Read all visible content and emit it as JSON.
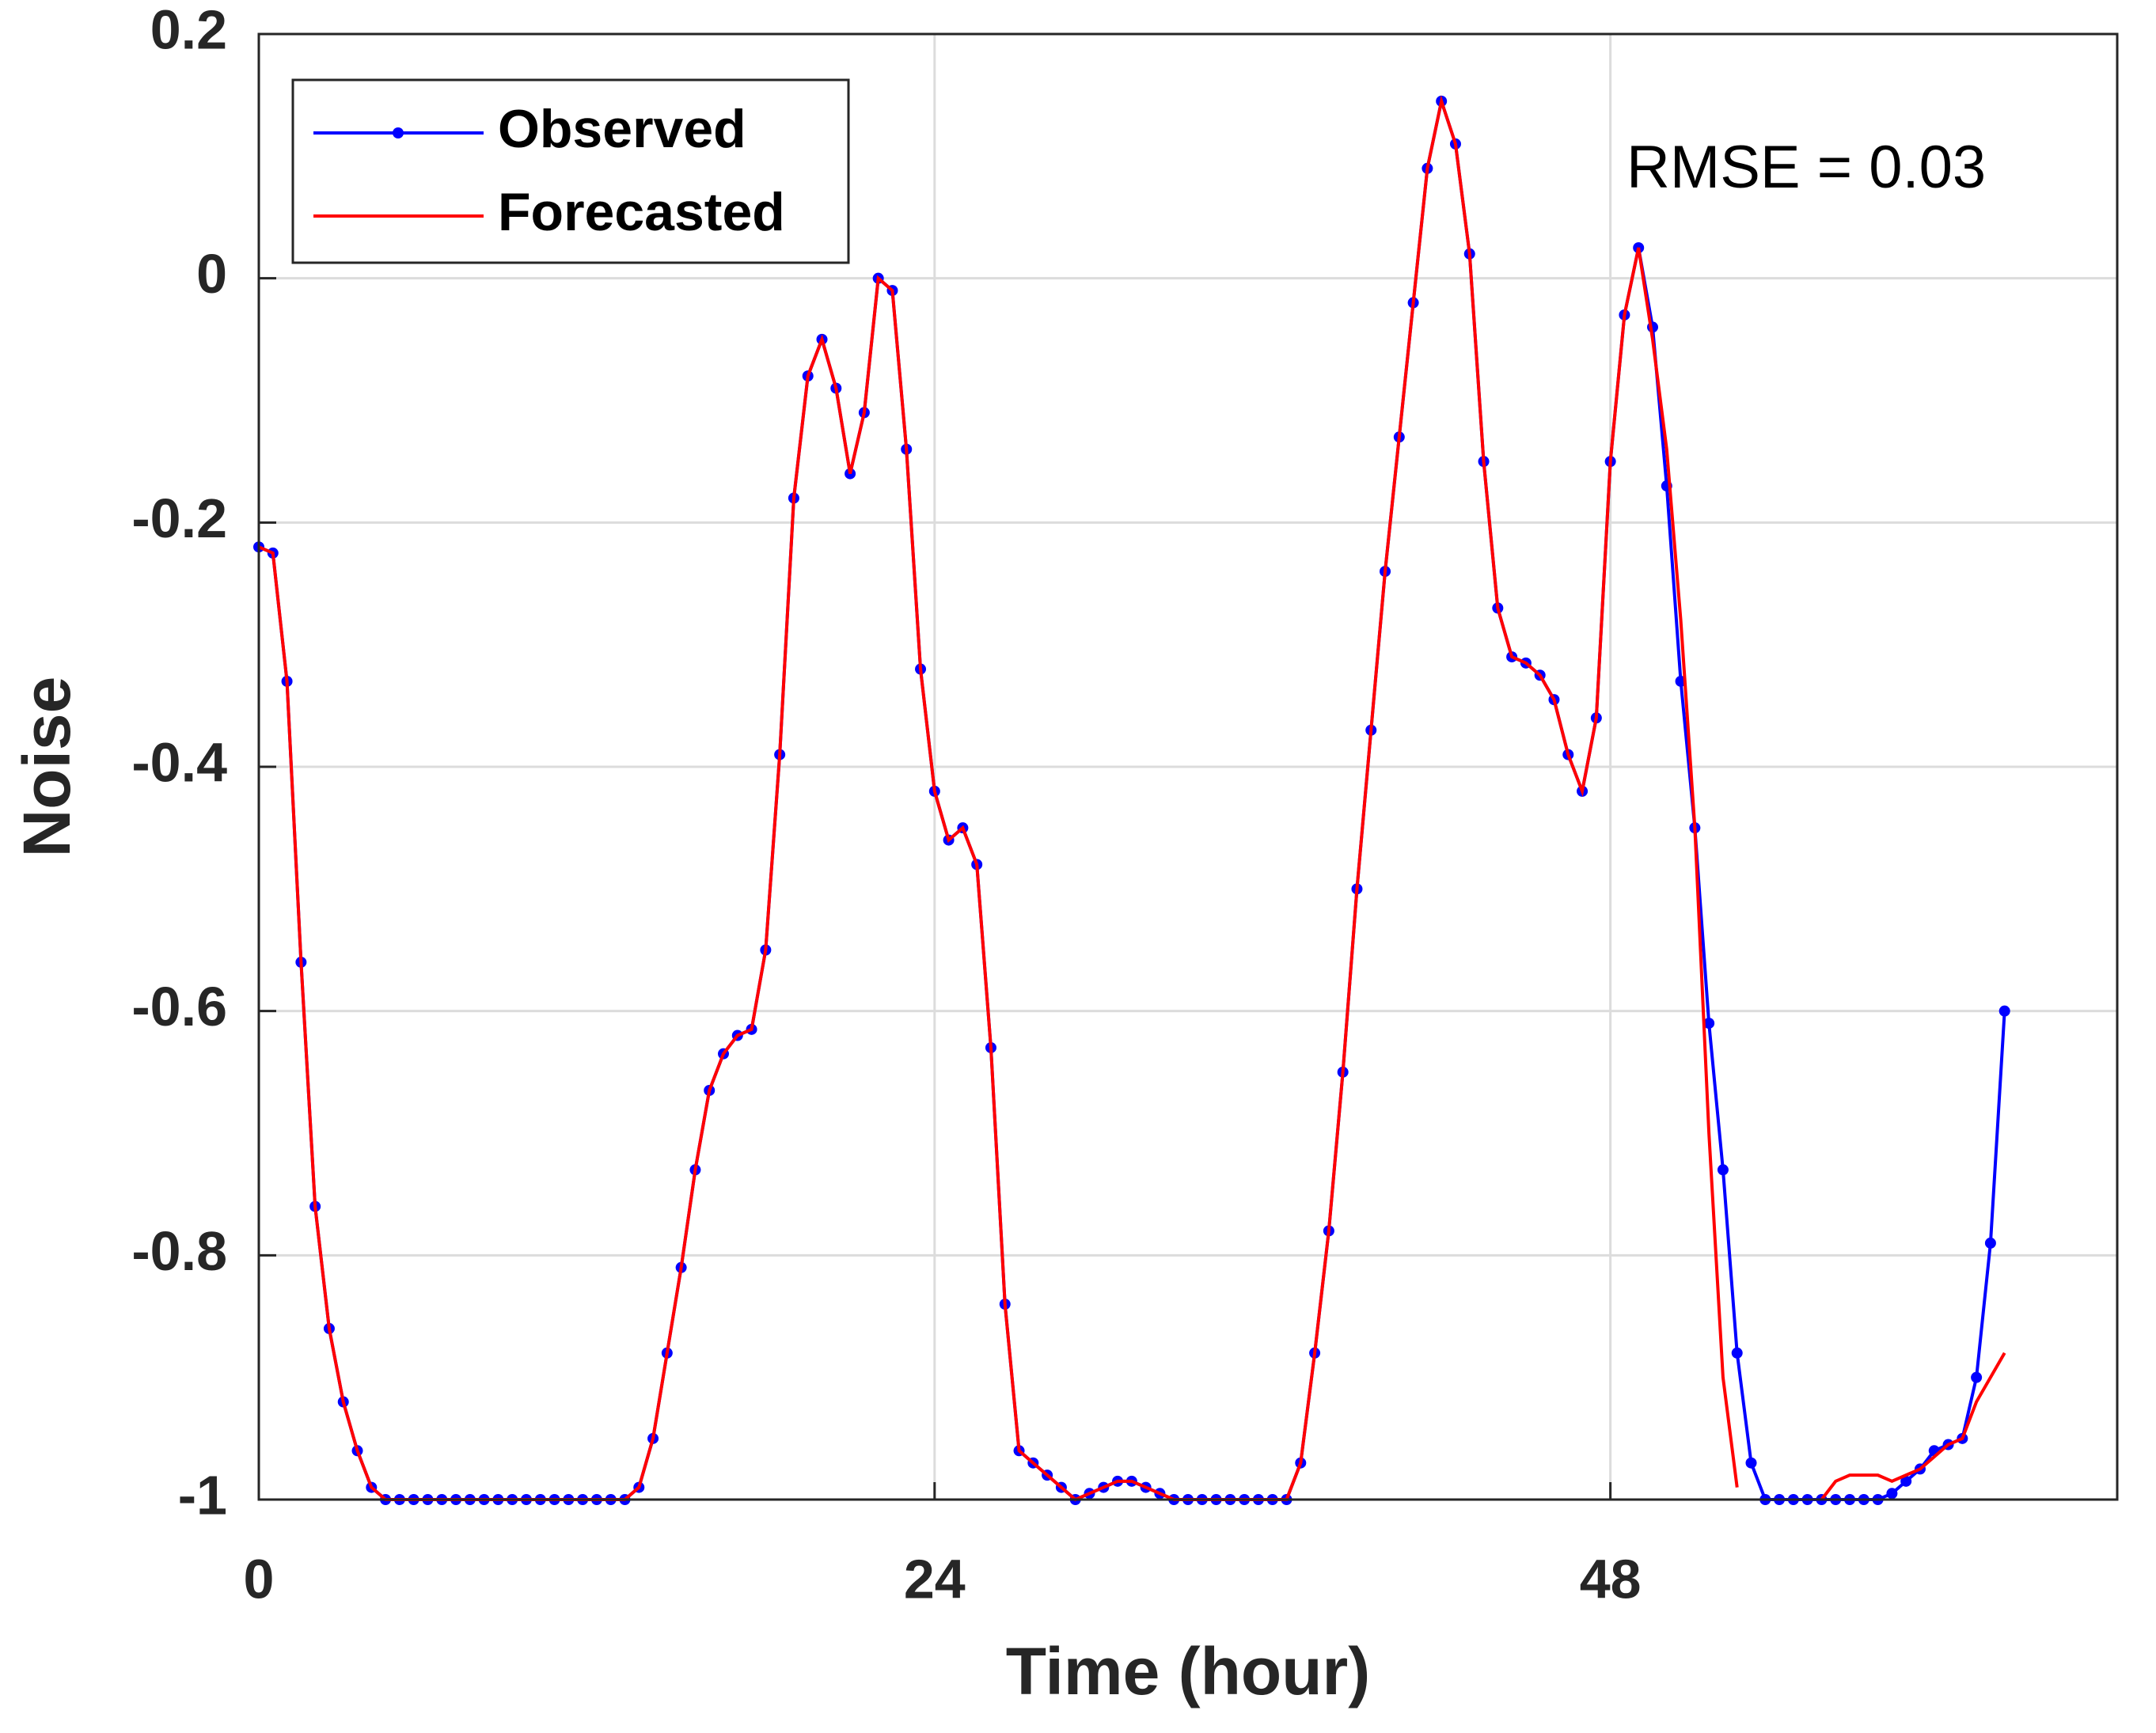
{
  "chart_data": {
    "type": "line",
    "xlabel": "Time (hour)",
    "ylabel": "Noise",
    "annotation": "RMSE = 0.03",
    "xlim": [
      0,
      66
    ],
    "ylim": [
      -1,
      0.2
    ],
    "xticks": [
      0,
      24,
      48
    ],
    "yticks": [
      -1,
      -0.8,
      -0.6,
      -0.4,
      -0.2,
      0,
      0.2
    ],
    "grid": true,
    "legend": "northwest",
    "x": [
      0,
      0.5,
      1,
      1.5,
      2,
      2.5,
      3,
      3.5,
      4,
      4.5,
      5,
      5.5,
      6,
      6.5,
      7,
      7.5,
      8,
      8.5,
      9,
      9.5,
      10,
      10.5,
      11,
      11.5,
      12,
      12.5,
      13,
      13.5,
      14,
      14.5,
      15,
      15.5,
      16,
      16.5,
      17,
      17.5,
      18,
      18.5,
      19,
      19.5,
      20,
      20.5,
      21,
      21.5,
      22,
      22.5,
      23,
      23.5,
      24,
      24.5,
      25,
      25.5,
      26,
      26.5,
      27,
      27.5,
      28,
      28.5,
      29,
      29.5,
      30,
      30.5,
      31,
      31.5,
      32,
      32.5,
      33,
      33.5,
      34,
      34.5,
      35,
      35.5,
      36,
      36.5,
      37,
      37.5,
      38,
      38.5,
      39,
      39.5,
      40,
      40.5,
      41,
      41.5,
      42,
      42.5,
      43,
      43.5,
      44,
      44.5,
      45,
      45.5,
      46,
      46.5,
      47,
      47.5,
      48,
      48.5,
      49,
      49.5,
      50,
      50.5,
      51,
      51.5,
      52,
      52.5,
      53,
      53.5,
      54,
      54.5,
      55,
      55.5,
      56,
      56.5,
      57,
      57.5,
      58,
      58.5,
      59,
      59.5,
      60,
      60.5,
      61,
      61.5,
      62
    ],
    "series": [
      {
        "name": "Observed",
        "color": "#0000ff",
        "marker": true,
        "values": [
          -0.22,
          -0.225,
          -0.33,
          -0.56,
          -0.76,
          -0.86,
          -0.92,
          -0.96,
          -0.99,
          -1,
          -1,
          -1,
          -1,
          -1,
          -1,
          -1,
          -1,
          -1,
          -1,
          -1,
          -1,
          -1,
          -1,
          -1,
          -1,
          -1,
          -1,
          -0.99,
          -0.95,
          -0.88,
          -0.81,
          -0.73,
          -0.665,
          -0.635,
          -0.62,
          -0.615,
          -0.55,
          -0.39,
          -0.18,
          -0.08,
          -0.05,
          -0.09,
          -0.16,
          -0.11,
          0,
          -0.01,
          -0.14,
          -0.32,
          -0.42,
          -0.46,
          -0.45,
          -0.48,
          -0.63,
          -0.84,
          -0.96,
          -0.97,
          -0.98,
          -0.99,
          -1,
          -0.995,
          -0.99,
          -0.985,
          -0.985,
          -0.99,
          -0.995,
          -1,
          -1,
          -1,
          -1,
          -1,
          -1,
          -1,
          -1,
          -1,
          -0.97,
          -0.88,
          -0.78,
          -0.65,
          -0.5,
          -0.37,
          -0.24,
          -0.13,
          -0.02,
          0.09,
          0.145,
          0.11,
          0.02,
          -0.15,
          -0.27,
          -0.31,
          -0.315,
          -0.325,
          -0.345,
          -0.39,
          -0.42,
          -0.36,
          -0.15,
          -0.03,
          0.025,
          -0.04,
          -0.17,
          -0.33,
          -0.45,
          -0.61,
          -0.73,
          -0.88,
          -0.97,
          -1,
          -1,
          -1,
          -1,
          -1,
          -1,
          -1,
          -1,
          -1,
          -0.995,
          -0.985,
          -0.975,
          -0.96,
          -0.955,
          -0.95,
          -0.9,
          -0.79,
          -0.6
        ]
      },
      {
        "name": "Forecasted",
        "color": "#ff0000",
        "marker": false,
        "values": [
          -0.22,
          -0.225,
          -0.33,
          -0.56,
          -0.76,
          -0.86,
          -0.92,
          -0.96,
          -0.99,
          -1,
          -1,
          -1,
          -1,
          -1,
          -1,
          -1,
          -1,
          -1,
          -1,
          -1,
          -1,
          -1,
          -1,
          -1,
          -1,
          -1,
          -1,
          -0.99,
          -0.95,
          -0.88,
          -0.81,
          -0.73,
          -0.665,
          -0.635,
          -0.62,
          -0.615,
          -0.55,
          -0.39,
          -0.18,
          -0.08,
          -0.05,
          -0.09,
          -0.16,
          -0.11,
          0,
          -0.01,
          -0.14,
          -0.32,
          -0.42,
          -0.46,
          -0.45,
          -0.48,
          -0.63,
          -0.84,
          -0.96,
          -0.97,
          -0.98,
          -0.99,
          -1,
          -0.995,
          -0.99,
          -0.985,
          -0.985,
          -0.99,
          -0.995,
          -1,
          -1,
          -1,
          -1,
          -1,
          -1,
          -1,
          -1,
          -1,
          -0.97,
          -0.88,
          -0.78,
          -0.65,
          -0.5,
          -0.37,
          -0.24,
          -0.13,
          -0.02,
          0.09,
          0.145,
          0.11,
          0.02,
          -0.15,
          -0.27,
          -0.31,
          -0.315,
          -0.325,
          -0.345,
          -0.39,
          -0.42,
          -0.36,
          -0.15,
          -0.03,
          0.025,
          -0.05,
          -0.14,
          -0.28,
          -0.45,
          -0.7,
          -0.9,
          -0.99,
          null,
          null,
          null,
          null,
          null,
          -1,
          -0.985,
          -0.98,
          -0.98,
          -0.98,
          -0.985,
          -0.98,
          -0.975,
          -0.965,
          -0.955,
          -0.95,
          -0.92,
          -0.9,
          -0.88
        ]
      }
    ]
  }
}
